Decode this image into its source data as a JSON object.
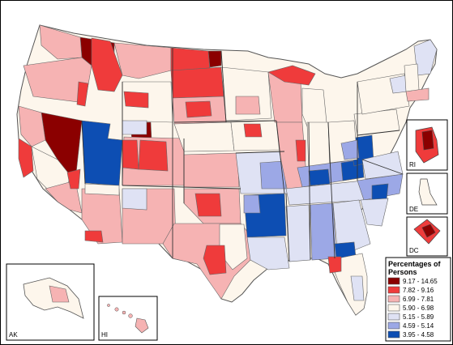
{
  "map": {
    "colors": {
      "class1": "#8b0000",
      "class2": "#ef3b3b",
      "class3": "#f6b3b3",
      "class4": "#fdf6ec",
      "class5": "#dfe2f4",
      "class6": "#9ca8e6",
      "class7": "#0d4eb3",
      "border": "#666666",
      "frame_shadow": "#c9c2a6"
    },
    "legend": {
      "title_line1": "Percentages of",
      "title_line2": "Persons",
      "classes": [
        {
          "label": "9.17 - 14.65",
          "color": "#8b0000"
        },
        {
          "label": "7.82 - 9.16",
          "color": "#ef3b3b"
        },
        {
          "label": "6.99 - 7.81",
          "color": "#f6b3b3"
        },
        {
          "label": "5.90 - 6.98",
          "color": "#fdf6ec"
        },
        {
          "label": "5.15 - 5.89",
          "color": "#dfe2f4"
        },
        {
          "label": "4.59 - 5.14",
          "color": "#9ca8e6"
        },
        {
          "label": "3.95 - 4.58",
          "color": "#0d4eb3"
        }
      ]
    },
    "insets": {
      "ak": "AK",
      "hi": "HI",
      "ri": "RI",
      "de": "DE",
      "dc": "DC"
    }
  }
}
